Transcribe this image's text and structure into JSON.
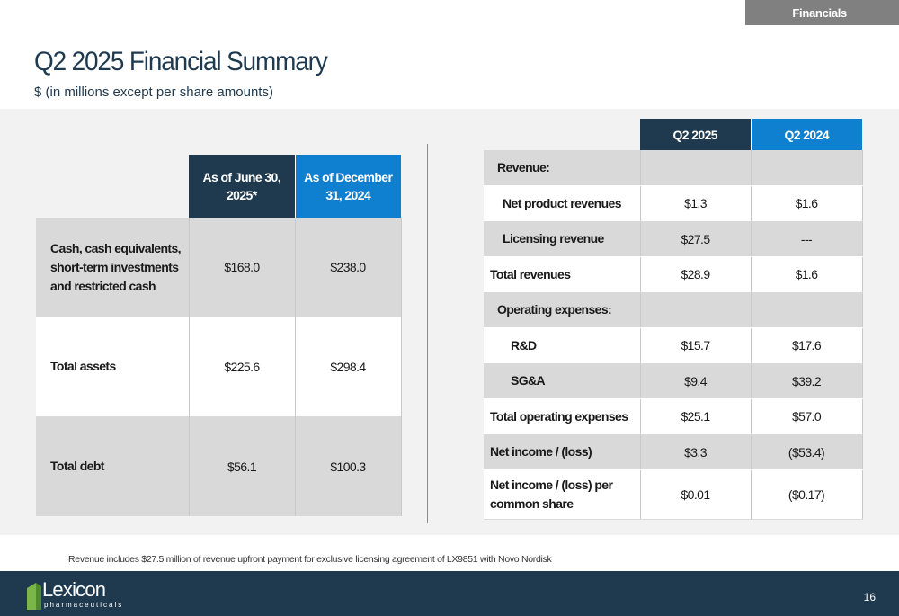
{
  "section_tag": "Financials",
  "title": "Q2 2025 Financial Summary",
  "subtitle": "$ (in millions except per share amounts)",
  "balance_sheet": {
    "headers": [
      "As of June 30, 2025*",
      "As of December 31, 2024"
    ],
    "rows": [
      {
        "label": "Cash, cash equivalents, short-term investments and restricted cash",
        "values": [
          "$168.0",
          "$238.0"
        ]
      },
      {
        "label": "Total assets",
        "values": [
          "$225.6",
          "$298.4"
        ]
      },
      {
        "label": "Total debt",
        "values": [
          "$56.1",
          "$100.3"
        ]
      }
    ]
  },
  "income_statement": {
    "headers": [
      "Q2 2025",
      "Q2 2024"
    ],
    "rows": [
      {
        "label": "Revenue:",
        "values": [
          "",
          ""
        ]
      },
      {
        "label": "Net product revenues",
        "values": [
          "$1.3",
          "$1.6"
        ]
      },
      {
        "label": "Licensing revenue",
        "values": [
          "$27.5",
          "---"
        ]
      },
      {
        "label": "Total revenues",
        "values": [
          "$28.9",
          "$1.6"
        ]
      },
      {
        "label": "Operating expenses:",
        "values": [
          "",
          ""
        ]
      },
      {
        "label": "R&D",
        "values": [
          "$15.7",
          "$17.6"
        ]
      },
      {
        "label": "SG&A",
        "values": [
          "$9.4",
          "$39.2"
        ]
      },
      {
        "label": "Total operating expenses",
        "values": [
          "$25.1",
          "$57.0"
        ]
      },
      {
        "label": "Net income / (loss)",
        "values": [
          "$3.3",
          "($53.4)"
        ]
      },
      {
        "label": "Net income / (loss) per common share",
        "values": [
          "$0.01",
          "($0.17)"
        ]
      }
    ]
  },
  "footnote": "Revenue includes $27.5 million of revenue upfront payment for exclusive licensing agreement of LX9851 with Novo Nordisk",
  "footer": {
    "logo_name": "Lexicon",
    "logo_sub": "pharmaceuticals",
    "page_number": "16"
  },
  "colors": {
    "navy": "#1f3a4f",
    "blue": "#0f7fd0",
    "row_gray": "#d9d9d9",
    "panel_gray": "#f2f2f2",
    "tag_gray": "#808080",
    "logo_green": "#7ab648"
  }
}
